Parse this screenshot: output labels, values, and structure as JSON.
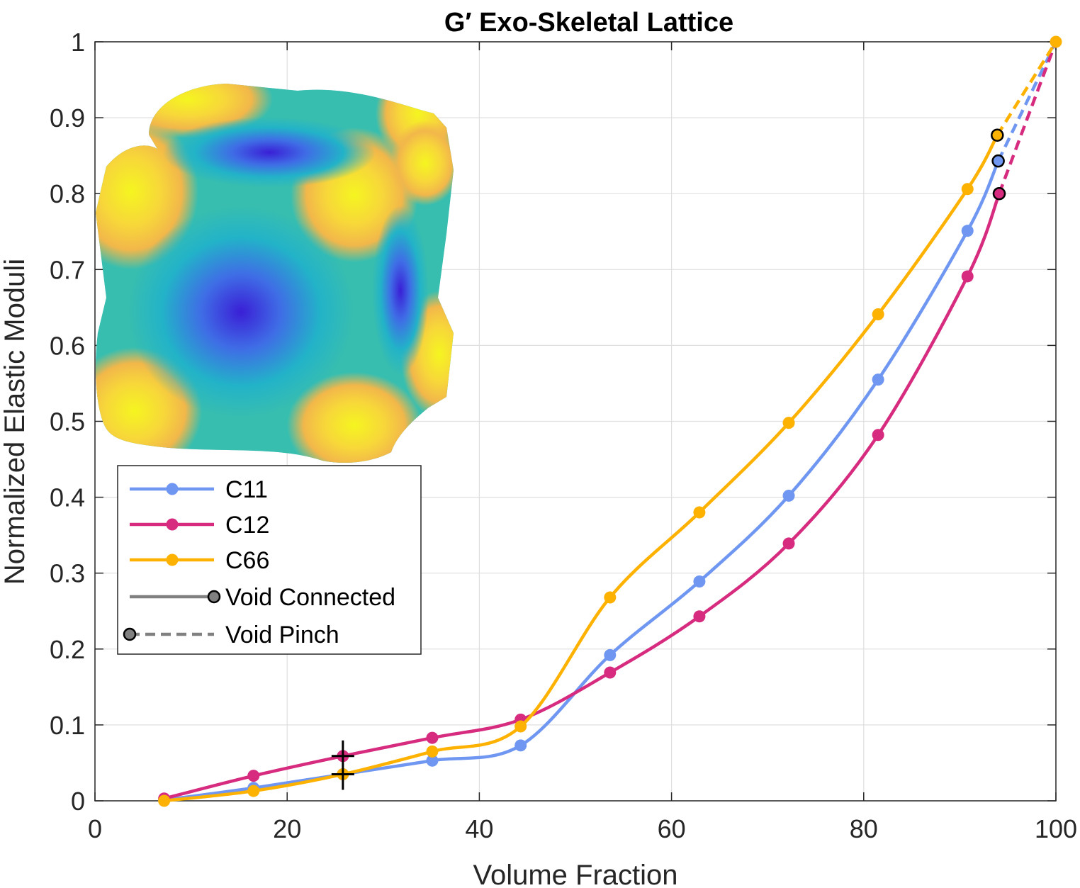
{
  "chart_data": {
    "type": "line",
    "title": "G′ Exo-Skeletal Lattice",
    "xlabel": "Volume Fraction",
    "ylabel": "Normalized Elastic Moduli",
    "xlim": [
      0,
      100
    ],
    "ylim": [
      0,
      1
    ],
    "xticks": [
      0,
      20,
      40,
      60,
      80,
      100
    ],
    "yticks": [
      0,
      0.1,
      0.2,
      0.3,
      0.4,
      0.5,
      0.6,
      0.7,
      0.8,
      0.9,
      1
    ],
    "xtick_labels": [
      "0",
      "20",
      "40",
      "60",
      "80",
      "100"
    ],
    "ytick_labels": [
      "0",
      "0.1",
      "0.2",
      "0.3",
      "0.4",
      "0.5",
      "0.6",
      "0.7",
      "0.8",
      "0.9",
      "1"
    ],
    "grid": true,
    "legend_position": "upper-left, below inset image",
    "series": [
      {
        "name": "C11",
        "color": "#6f97f2",
        "x": [
          7.2,
          16.5,
          25.8,
          35.1,
          44.3,
          53.6,
          62.9,
          72.2,
          81.5,
          90.8,
          94.0
        ],
        "y": [
          0.001,
          0.017,
          0.035,
          0.053,
          0.073,
          0.192,
          0.289,
          0.402,
          0.555,
          0.751,
          0.843
        ],
        "dashed_x": [
          94.0,
          100
        ],
        "dashed_y": [
          0.843,
          1.0
        ]
      },
      {
        "name": "C12",
        "color": "#d62b7e",
        "x": [
          7.2,
          16.5,
          25.8,
          35.1,
          44.3,
          53.6,
          62.9,
          72.2,
          81.5,
          90.8,
          94.1
        ],
        "y": [
          0.003,
          0.033,
          0.059,
          0.083,
          0.107,
          0.169,
          0.243,
          0.339,
          0.482,
          0.691,
          0.8
        ],
        "dashed_x": [
          94.1,
          100
        ],
        "dashed_y": [
          0.8,
          1.0
        ]
      },
      {
        "name": "C66",
        "color": "#fdb100",
        "x": [
          7.2,
          16.5,
          25.8,
          35.1,
          44.3,
          53.6,
          62.9,
          72.2,
          81.5,
          90.8,
          93.9
        ],
        "y": [
          0.0,
          0.013,
          0.035,
          0.065,
          0.098,
          0.268,
          0.38,
          0.498,
          0.641,
          0.806,
          0.877
        ],
        "dashed_x": [
          93.9,
          100
        ],
        "dashed_y": [
          0.877,
          1.0
        ]
      }
    ],
    "endpoint": {
      "x": 100,
      "y": 1.0
    },
    "markers": {
      "void_connected": "filled circle on solid line",
      "void_pinch": "black-edged circle at start of dashed segment",
      "crosshair": {
        "x": 25.8,
        "y": [
          0.035,
          0.059
        ]
      }
    },
    "legend": [
      {
        "label": "C11",
        "color": "#6f97f2",
        "style": "solid"
      },
      {
        "label": "C12",
        "color": "#d62b7e",
        "style": "solid"
      },
      {
        "label": "C66",
        "color": "#fdb100",
        "style": "solid"
      },
      {
        "label": "Void Connected",
        "color": "#808080",
        "style": "solid"
      },
      {
        "label": "Void Pinch",
        "color": "#808080",
        "style": "dashed"
      }
    ]
  }
}
